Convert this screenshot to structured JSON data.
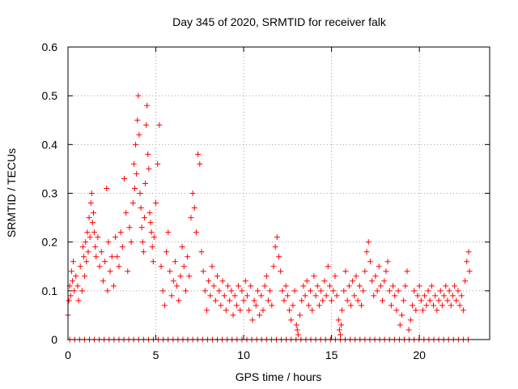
{
  "chart_data": {
    "type": "scatter",
    "title": "Day 345 of 2020, SRMTID for receiver falk",
    "xlabel": "GPS time / hours",
    "ylabel": "SRMTID / TECUs",
    "xlim": [
      0,
      24
    ],
    "ylim": [
      0,
      0.6
    ],
    "xticks": [
      0,
      5,
      10,
      15,
      20
    ],
    "yticks": [
      0,
      0.1,
      0.2,
      0.3,
      0.4,
      0.5,
      0.6
    ],
    "xtick_labels": [
      "0",
      "5",
      "10",
      "15",
      "20"
    ],
    "ytick_labels": [
      "0",
      "0.1",
      "0.2",
      "0.3",
      "0.4",
      "0.5",
      "0.6"
    ],
    "grid": true,
    "marker": "plus",
    "color": "#ff0000",
    "series": [
      {
        "name": "SRMTID",
        "points": [
          [
            0.0,
            0.05
          ],
          [
            0.05,
            0.08
          ],
          [
            0.1,
            0.11
          ],
          [
            0.15,
            0.09
          ],
          [
            0.2,
            0.14
          ],
          [
            0.25,
            0.12
          ],
          [
            0.3,
            0.16
          ],
          [
            0.35,
            0.1
          ],
          [
            0.45,
            0.13
          ],
          [
            0.55,
            0.11
          ],
          [
            0.6,
            0.08
          ],
          [
            0.7,
            0.15
          ],
          [
            0.8,
            0.1
          ],
          [
            0.85,
            0.19
          ],
          [
            0.9,
            0.17
          ],
          [
            0.95,
            0.13
          ],
          [
            1.0,
            0.2
          ],
          [
            1.05,
            0.16
          ],
          [
            1.1,
            0.22
          ],
          [
            1.15,
            0.18
          ],
          [
            1.2,
            0.25
          ],
          [
            1.25,
            0.21
          ],
          [
            1.3,
            0.28
          ],
          [
            1.35,
            0.3
          ],
          [
            1.4,
            0.24
          ],
          [
            1.45,
            0.26
          ],
          [
            1.5,
            0.22
          ],
          [
            1.55,
            0.19
          ],
          [
            1.6,
            0.17
          ],
          [
            1.7,
            0.21
          ],
          [
            1.8,
            0.15
          ],
          [
            1.9,
            0.18
          ],
          [
            2.0,
            0.12
          ],
          [
            2.1,
            0.16
          ],
          [
            2.2,
            0.31
          ],
          [
            2.25,
            0.1
          ],
          [
            2.3,
            0.2
          ],
          [
            2.4,
            0.14
          ],
          [
            2.5,
            0.17
          ],
          [
            2.6,
            0.11
          ],
          [
            2.7,
            0.21
          ],
          [
            2.8,
            0.17
          ],
          [
            2.9,
            0.15
          ],
          [
            3.0,
            0.22
          ],
          [
            3.1,
            0.19
          ],
          [
            3.2,
            0.33
          ],
          [
            3.3,
            0.26
          ],
          [
            3.4,
            0.14
          ],
          [
            3.5,
            0.23
          ],
          [
            3.6,
            0.2
          ],
          [
            3.7,
            0.28
          ],
          [
            3.75,
            0.36
          ],
          [
            3.8,
            0.31
          ],
          [
            3.85,
            0.4
          ],
          [
            3.9,
            0.34
          ],
          [
            3.95,
            0.45
          ],
          [
            4.0,
            0.5
          ],
          [
            4.05,
            0.42
          ],
          [
            4.1,
            0.3
          ],
          [
            4.15,
            0.27
          ],
          [
            4.2,
            0.23
          ],
          [
            4.25,
            0.2
          ],
          [
            4.3,
            0.18
          ],
          [
            4.35,
            0.25
          ],
          [
            4.4,
            0.32
          ],
          [
            4.45,
            0.44
          ],
          [
            4.5,
            0.48
          ],
          [
            4.55,
            0.38
          ],
          [
            4.6,
            0.35
          ],
          [
            4.65,
            0.26
          ],
          [
            4.7,
            0.24
          ],
          [
            4.75,
            0.22
          ],
          [
            4.8,
            0.19
          ],
          [
            4.85,
            0.16
          ],
          [
            4.9,
            0.21
          ],
          [
            5.0,
            0.28
          ],
          [
            5.1,
            0.36
          ],
          [
            5.2,
            0.44
          ],
          [
            5.3,
            0.15
          ],
          [
            5.4,
            0.1
          ],
          [
            5.5,
            0.07
          ],
          [
            5.6,
            0.18
          ],
          [
            5.7,
            0.22
          ],
          [
            5.8,
            0.14
          ],
          [
            5.9,
            0.09
          ],
          [
            6.0,
            0.12
          ],
          [
            6.1,
            0.16
          ],
          [
            6.2,
            0.11
          ],
          [
            6.3,
            0.08
          ],
          [
            6.4,
            0.13
          ],
          [
            6.5,
            0.19
          ],
          [
            6.6,
            0.15
          ],
          [
            6.7,
            0.1
          ],
          [
            6.8,
            0.17
          ],
          [
            6.9,
            0.13
          ],
          [
            7.0,
            0.25
          ],
          [
            7.1,
            0.3
          ],
          [
            7.2,
            0.27
          ],
          [
            7.3,
            0.22
          ],
          [
            7.4,
            0.38
          ],
          [
            7.5,
            0.36
          ],
          [
            7.6,
            0.18
          ],
          [
            7.7,
            0.14
          ],
          [
            7.8,
            0.1
          ],
          [
            7.9,
            0.06
          ],
          [
            8.0,
            0.12
          ],
          [
            8.1,
            0.09
          ],
          [
            8.2,
            0.15
          ],
          [
            8.3,
            0.11
          ],
          [
            8.4,
            0.08
          ],
          [
            8.5,
            0.13
          ],
          [
            8.6,
            0.1
          ],
          [
            8.7,
            0.07
          ],
          [
            8.8,
            0.12
          ],
          [
            8.9,
            0.09
          ],
          [
            9.0,
            0.06
          ],
          [
            9.1,
            0.11
          ],
          [
            9.2,
            0.08
          ],
          [
            9.3,
            0.1
          ],
          [
            9.4,
            0.05
          ],
          [
            9.5,
            0.09
          ],
          [
            9.6,
            0.07
          ],
          [
            9.7,
            0.11
          ],
          [
            9.8,
            0.06
          ],
          [
            9.9,
            0.1
          ],
          [
            10.0,
            0.08
          ],
          [
            10.1,
            0.12
          ],
          [
            10.2,
            0.09
          ],
          [
            10.3,
            0.06
          ],
          [
            10.4,
            0.11
          ],
          [
            10.5,
            0.04
          ],
          [
            10.6,
            0.08
          ],
          [
            10.7,
            0.07
          ],
          [
            10.8,
            0.1
          ],
          [
            10.9,
            0.05
          ],
          [
            11.0,
            0.09
          ],
          [
            11.1,
            0.06
          ],
          [
            11.2,
            0.11
          ],
          [
            11.3,
            0.13
          ],
          [
            11.4,
            0.08
          ],
          [
            11.5,
            0.1
          ],
          [
            11.6,
            0.07
          ],
          [
            11.7,
            0.15
          ],
          [
            11.8,
            0.19
          ],
          [
            11.9,
            0.21
          ],
          [
            12.0,
            0.17
          ],
          [
            12.1,
            0.14
          ],
          [
            12.2,
            0.1
          ],
          [
            12.3,
            0.08
          ],
          [
            12.4,
            0.11
          ],
          [
            12.5,
            0.09
          ],
          [
            12.6,
            0.06
          ],
          [
            12.7,
            0.04
          ],
          [
            12.8,
            0.07
          ],
          [
            12.9,
            0.1
          ],
          [
            13.0,
            0.03
          ],
          [
            13.05,
            0.02
          ],
          [
            13.1,
            0.01
          ],
          [
            13.2,
            0.05
          ],
          [
            13.3,
            0.08
          ],
          [
            13.4,
            0.11
          ],
          [
            13.5,
            0.09
          ],
          [
            13.6,
            0.12
          ],
          [
            13.7,
            0.07
          ],
          [
            13.8,
            0.1
          ],
          [
            13.9,
            0.06
          ],
          [
            14.0,
            0.13
          ],
          [
            14.1,
            0.09
          ],
          [
            14.2,
            0.11
          ],
          [
            14.3,
            0.07
          ],
          [
            14.4,
            0.1
          ],
          [
            14.5,
            0.08
          ],
          [
            14.6,
            0.12
          ],
          [
            14.7,
            0.09
          ],
          [
            14.8,
            0.15
          ],
          [
            14.9,
            0.11
          ],
          [
            15.0,
            0.08
          ],
          [
            15.1,
            0.1
          ],
          [
            15.2,
            0.13
          ],
          [
            15.3,
            0.09
          ],
          [
            15.4,
            0.04
          ],
          [
            15.45,
            0.02
          ],
          [
            15.5,
            0.01
          ],
          [
            15.55,
            0.03
          ],
          [
            15.6,
            0.06
          ],
          [
            15.7,
            0.1
          ],
          [
            15.8,
            0.14
          ],
          [
            15.9,
            0.08
          ],
          [
            16.0,
            0.11
          ],
          [
            16.1,
            0.07
          ],
          [
            16.2,
            0.12
          ],
          [
            16.3,
            0.09
          ],
          [
            16.4,
            0.13
          ],
          [
            16.5,
            0.08
          ],
          [
            16.6,
            0.11
          ],
          [
            16.7,
            0.07
          ],
          [
            16.8,
            0.1
          ],
          [
            16.9,
            0.14
          ],
          [
            17.0,
            0.18
          ],
          [
            17.1,
            0.2
          ],
          [
            17.2,
            0.16
          ],
          [
            17.3,
            0.12
          ],
          [
            17.4,
            0.09
          ],
          [
            17.5,
            0.13
          ],
          [
            17.6,
            0.1
          ],
          [
            17.7,
            0.15
          ],
          [
            17.8,
            0.11
          ],
          [
            17.9,
            0.08
          ],
          [
            18.0,
            0.12
          ],
          [
            18.1,
            0.14
          ],
          [
            18.2,
            0.16
          ],
          [
            18.3,
            0.1
          ],
          [
            18.4,
            0.07
          ],
          [
            18.5,
            0.11
          ],
          [
            18.6,
            0.09
          ],
          [
            18.7,
            0.06
          ],
          [
            18.8,
            0.1
          ],
          [
            18.9,
            0.03
          ],
          [
            19.0,
            0.05
          ],
          [
            19.1,
            0.08
          ],
          [
            19.2,
            0.11
          ],
          [
            19.3,
            0.14
          ],
          [
            19.4,
            0.02
          ],
          [
            19.5,
            0.04
          ],
          [
            19.6,
            0.07
          ],
          [
            19.7,
            0.1
          ],
          [
            19.8,
            0.06
          ],
          [
            19.9,
            0.09
          ],
          [
            20.0,
            0.11
          ],
          [
            20.1,
            0.08
          ],
          [
            20.2,
            0.06
          ],
          [
            20.3,
            0.09
          ],
          [
            20.4,
            0.07
          ],
          [
            20.5,
            0.1
          ],
          [
            20.6,
            0.08
          ],
          [
            20.7,
            0.11
          ],
          [
            20.8,
            0.07
          ],
          [
            20.9,
            0.09
          ],
          [
            21.0,
            0.06
          ],
          [
            21.1,
            0.08
          ],
          [
            21.2,
            0.1
          ],
          [
            21.3,
            0.07
          ],
          [
            21.4,
            0.09
          ],
          [
            21.5,
            0.11
          ],
          [
            21.6,
            0.08
          ],
          [
            21.7,
            0.1
          ],
          [
            21.8,
            0.07
          ],
          [
            21.9,
            0.09
          ],
          [
            22.0,
            0.11
          ],
          [
            22.1,
            0.08
          ],
          [
            22.2,
            0.1
          ],
          [
            22.3,
            0.07
          ],
          [
            22.4,
            0.09
          ],
          [
            22.5,
            0.06
          ],
          [
            22.6,
            0.12
          ],
          [
            22.7,
            0.16
          ],
          [
            22.8,
            0.18
          ],
          [
            22.85,
            0.14
          ]
        ]
      },
      {
        "name": "zero-floor",
        "x_from": 0.1,
        "x_to": 22.8,
        "x_step": 0.28,
        "y": 0
      }
    ]
  }
}
